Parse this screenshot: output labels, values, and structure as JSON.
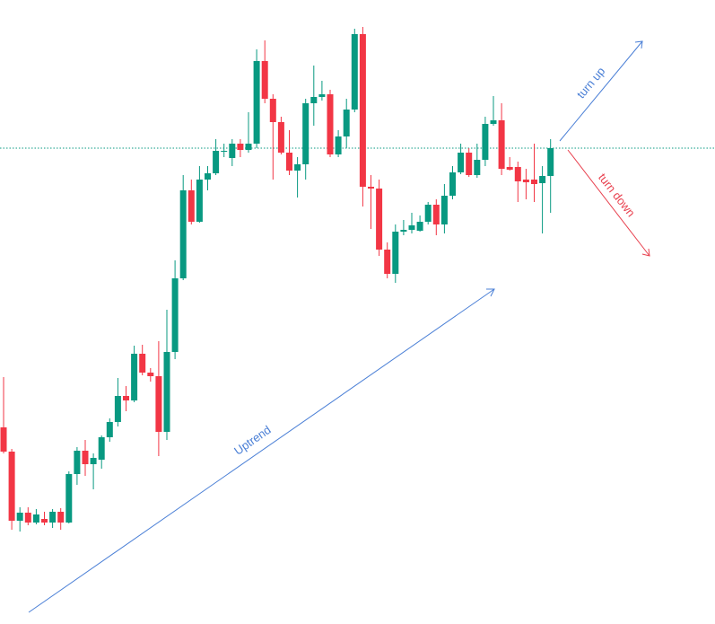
{
  "chart_data": {
    "type": "candlestick",
    "up_color": "#089981",
    "down_color": "#f23645",
    "ylim": [
      0,
      695
    ],
    "open": [
      219,
      192,
      115,
      124,
      113,
      117,
      113,
      125,
      113,
      167,
      193,
      178,
      183,
      208,
      225,
      254,
      249,
      301,
      280,
      276,
      214,
      303,
      385,
      483,
      448,
      495,
      502,
      527,
      519,
      535,
      528,
      535,
      627,
      585,
      559,
      525,
      505,
      512,
      580,
      587,
      590,
      523,
      543,
      573,
      657,
      487,
      485,
      417,
      390,
      437,
      439,
      438,
      448,
      467,
      445,
      477,
      503,
      525,
      500,
      517,
      557,
      561,
      509,
      509,
      495,
      495,
      491,
      499
    ],
    "high": [
      275,
      195,
      130,
      130,
      128,
      125,
      128,
      129,
      170,
      197,
      205,
      190,
      210,
      229,
      274,
      265,
      310,
      311,
      285,
      315,
      350,
      405,
      500,
      495,
      510,
      510,
      540,
      535,
      540,
      540,
      570,
      640,
      650,
      590,
      565,
      550,
      520,
      585,
      622,
      605,
      595,
      550,
      585,
      663,
      665,
      500,
      495,
      425,
      445,
      450,
      458,
      455,
      470,
      473,
      490,
      510,
      535,
      530,
      535,
      565,
      588,
      580,
      520,
      515,
      507,
      535,
      510,
      540
    ],
    "low": [
      190,
      105,
      103,
      110,
      111,
      110,
      107,
      105,
      112,
      155,
      165,
      150,
      173,
      203,
      220,
      237,
      247,
      277,
      270,
      187,
      205,
      295,
      383,
      445,
      447,
      483,
      500,
      520,
      510,
      520,
      525,
      530,
      580,
      495,
      523,
      500,
      475,
      495,
      555,
      583,
      520,
      520,
      530,
      570,
      465,
      440,
      410,
      385,
      380,
      433,
      435,
      437,
      445,
      433,
      435,
      473,
      501,
      498,
      497,
      510,
      555,
      500,
      505,
      470,
      473,
      470,
      435,
      458
    ],
    "close": [
      192,
      115,
      124,
      113,
      122,
      113,
      125,
      113,
      167,
      193,
      178,
      185,
      208,
      225,
      254,
      249,
      301,
      280,
      276,
      214,
      303,
      385,
      483,
      448,
      495,
      502,
      527,
      527,
      535,
      528,
      535,
      627,
      585,
      559,
      525,
      505,
      512,
      580,
      587,
      590,
      523,
      543,
      573,
      657,
      487,
      485,
      417,
      390,
      437,
      439,
      444,
      448,
      467,
      445,
      477,
      503,
      525,
      500,
      517,
      557,
      561,
      507,
      506,
      493,
      492,
      490,
      499,
      530
    ],
    "hline": 530,
    "hline_color": "#089981",
    "annotations": [
      {
        "text": "Uptrend",
        "color": "#4a7fd6"
      },
      {
        "text": "turn up",
        "color": "#4a7fd6"
      },
      {
        "text": "turn down",
        "color": "#e8404e"
      }
    ]
  }
}
